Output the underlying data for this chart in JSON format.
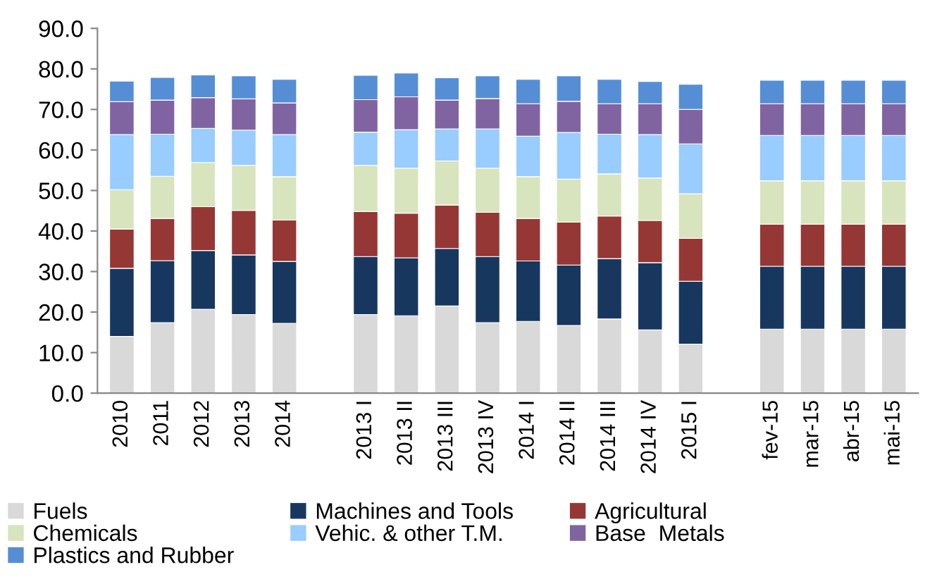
{
  "chart_data": {
    "type": "bar",
    "stacked": true,
    "legend": "bottom",
    "grid": false,
    "categories": [
      "2010",
      "2011",
      "2012",
      "2013",
      "2014",
      null,
      "2013 I",
      "2013 II",
      "2013 III",
      "2013 IV",
      "2014 I",
      "2014 II",
      "2014 III",
      "2014 IV",
      "2015 I",
      null,
      "fev-15",
      "mar-15",
      "abr-15",
      "mai-15"
    ],
    "ylim": [
      0,
      90
    ],
    "yticks": [
      {
        "value": 0,
        "label": "0.0"
      },
      {
        "value": 10,
        "label": "10.0"
      },
      {
        "value": 20,
        "label": "20.0"
      },
      {
        "value": 30,
        "label": "30.0"
      },
      {
        "value": 40,
        "label": "40.0"
      },
      {
        "value": 50,
        "label": "50.0"
      },
      {
        "value": 60,
        "label": "60.0"
      },
      {
        "value": 70,
        "label": "70.0"
      },
      {
        "value": 80,
        "label": "80.0"
      },
      {
        "value": 90,
        "label": "90.0"
      }
    ],
    "series": [
      {
        "name": "Fuels",
        "color": "#d9d9d9",
        "values": [
          14.0,
          17.4,
          20.7,
          19.4,
          17.2,
          null,
          19.4,
          19.1,
          21.5,
          17.4,
          17.7,
          16.7,
          18.3,
          15.6,
          12.1,
          null,
          15.8,
          15.8,
          15.8,
          15.8
        ]
      },
      {
        "name": "Machines and Tools",
        "color": "#17375e",
        "values": [
          16.8,
          15.3,
          14.5,
          14.7,
          15.3,
          null,
          14.3,
          14.3,
          14.2,
          16.3,
          14.9,
          14.9,
          14.9,
          16.6,
          15.5,
          null,
          15.5,
          15.5,
          15.5,
          15.5
        ]
      },
      {
        "name": "Agricultural",
        "color": "#953735",
        "values": [
          9.7,
          10.4,
          10.8,
          11.0,
          10.2,
          null,
          11.1,
          11.0,
          10.7,
          10.9,
          10.5,
          10.6,
          10.5,
          10.4,
          10.6,
          null,
          10.4,
          10.4,
          10.4,
          10.4
        ]
      },
      {
        "name": "Chemicals",
        "color": "#d7e4bd",
        "values": [
          9.7,
          10.4,
          10.9,
          11.1,
          10.7,
          null,
          11.4,
          11.1,
          10.9,
          10.9,
          10.3,
          10.6,
          10.4,
          10.5,
          11.0,
          null,
          10.7,
          10.7,
          10.7,
          10.7
        ]
      },
      {
        "name": "Vehic. & other T.M.",
        "color": "#99ccff",
        "values": [
          13.6,
          10.4,
          8.4,
          8.7,
          10.4,
          null,
          8.2,
          9.5,
          7.9,
          9.7,
          10.0,
          11.5,
          9.8,
          10.7,
          12.3,
          null,
          11.2,
          11.2,
          11.2,
          11.2
        ]
      },
      {
        "name": "Base  Metals",
        "color": "#8064a2",
        "values": [
          8.1,
          8.4,
          7.6,
          7.7,
          7.8,
          null,
          8.0,
          8.1,
          7.1,
          7.5,
          8.0,
          7.7,
          7.5,
          7.6,
          8.5,
          null,
          7.8,
          7.8,
          7.8,
          7.8
        ]
      },
      {
        "name": "Plastics and Rubber",
        "color": "#558ed5",
        "values": [
          5.1,
          5.6,
          5.6,
          5.7,
          5.8,
          null,
          6.0,
          5.9,
          5.5,
          5.6,
          6.0,
          6.3,
          6.0,
          5.5,
          6.2,
          null,
          5.8,
          5.8,
          5.8,
          5.8
        ]
      }
    ]
  }
}
